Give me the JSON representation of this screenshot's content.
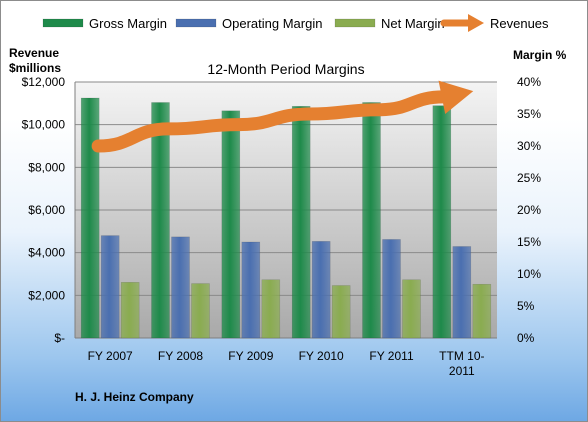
{
  "chart_data": {
    "type": "bar",
    "title": "12-Month Period Margins",
    "footer": "H. J. Heinz Company",
    "categories": [
      [
        "FY 2007"
      ],
      [
        "FY 2008"
      ],
      [
        "FY 2009"
      ],
      [
        "FY 2010"
      ],
      [
        "FY 2011"
      ],
      [
        "TTM 10-",
        "2011"
      ]
    ],
    "y_left": {
      "label": [
        "Revenue",
        "$millions"
      ],
      "ticks": [
        "$-",
        "$2,000",
        "$4,000",
        "$6,000",
        "$8,000",
        "$10,000",
        "$12,000"
      ],
      "range": [
        0,
        12000
      ]
    },
    "y_right": {
      "label": "Margin %",
      "ticks": [
        "0%",
        "5%",
        "10%",
        "15%",
        "20%",
        "25%",
        "30%",
        "35%",
        "40%"
      ],
      "range": [
        0,
        40
      ]
    },
    "series": [
      {
        "name": "Gross Margin",
        "type": "bar",
        "axis": "right",
        "color": "#1e8a4a",
        "values": [
          37.5,
          36.8,
          35.5,
          36.2,
          36.8,
          36.3
        ]
      },
      {
        "name": "Operating Margin",
        "type": "bar",
        "axis": "right",
        "color": "#4a6fb0",
        "values": [
          16.0,
          15.8,
          15.0,
          15.1,
          15.4,
          14.3
        ]
      },
      {
        "name": "Net Margin",
        "type": "bar",
        "axis": "right",
        "color": "#8aac50",
        "values": [
          8.7,
          8.5,
          9.1,
          8.2,
          9.1,
          8.4
        ]
      },
      {
        "name": "Revenues",
        "type": "line",
        "axis": "left",
        "color": "#e58030",
        "values": [
          9000,
          9800,
          10000,
          10500,
          10700,
          11300
        ]
      }
    ],
    "grid": true,
    "legend": "top"
  }
}
